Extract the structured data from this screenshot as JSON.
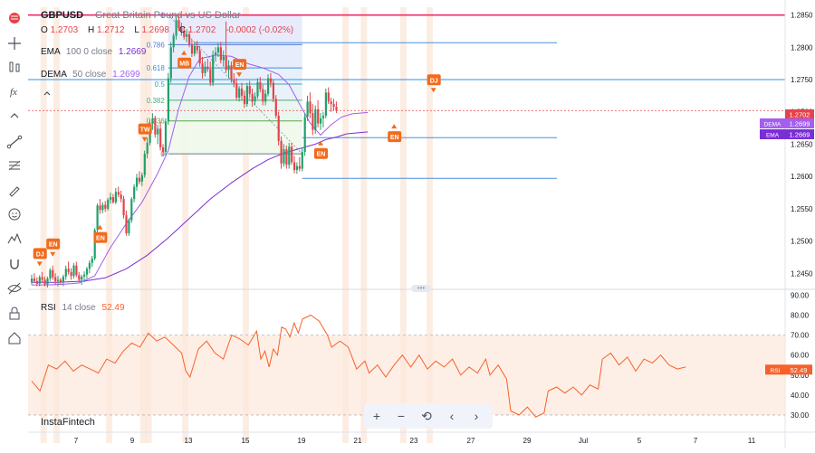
{
  "symbol": "GBPUSD",
  "description": "Great Britain Pound vs US Dollar",
  "ohlc": {
    "o_label": "O",
    "o": "1.2703",
    "h_label": "H",
    "h": "1.2712",
    "l_label": "L",
    "l": "1.2698",
    "c_label": "C",
    "c": "1.2702",
    "change": "-0.0002 (-0.02%)"
  },
  "indicators": {
    "ema": {
      "name": "EMA",
      "params": "100 0 close",
      "value": "1.2669",
      "color": "#7a2fd6"
    },
    "dema": {
      "name": "DEMA",
      "params": "50 close",
      "value": "1.2699",
      "color": "#a45ef0"
    },
    "rsi": {
      "name": "RSI",
      "params": "14 close",
      "value": "52.49",
      "color": "#f7612a"
    }
  },
  "brand": "InstaFintech",
  "colors": {
    "up": "#22a06b",
    "down": "#e5434a",
    "accent": "#f26b1d",
    "red_line": "#e91e63",
    "blue_line": "#2196f3"
  },
  "toolbar_icons": [
    "flag-icon",
    "crosshair-icon",
    "candles-icon",
    "function-icon",
    "caret-up-icon",
    "trendline-icon",
    "fib-icon",
    "brush-icon",
    "emoji-icon",
    "patterns-icon",
    "magnet-icon",
    "hide-icon",
    "lock-icon",
    "home-icon"
  ],
  "nav_buttons": {
    "zoom_in": "+",
    "zoom_out": "−",
    "reset": "⟲",
    "left": "‹",
    "right": "›"
  },
  "chart_data": {
    "type": "candlestick",
    "y_ticks": [
      "1.2850",
      "1.2800",
      "1.2750",
      "1.2700",
      "1.2650",
      "1.2600",
      "1.2550",
      "1.2500",
      "1.2450"
    ],
    "ylim": [
      1.2428,
      1.2862
    ],
    "x_ticks": [
      "7",
      "9",
      "13",
      "15",
      "19",
      "21",
      "23",
      "27",
      "29",
      "Jul",
      "5",
      "7",
      "11"
    ],
    "candles": [
      [
        1.2436,
        1.2448,
        1.2432,
        1.2442
      ],
      [
        1.2442,
        1.245,
        1.2436,
        1.2438
      ],
      [
        1.2438,
        1.2444,
        1.243,
        1.2434
      ],
      [
        1.2434,
        1.2447,
        1.243,
        1.2444
      ],
      [
        1.2444,
        1.2452,
        1.2436,
        1.244
      ],
      [
        1.244,
        1.2445,
        1.243,
        1.2433
      ],
      [
        1.2433,
        1.2445,
        1.2428,
        1.2442
      ],
      [
        1.2442,
        1.2458,
        1.2438,
        1.2455
      ],
      [
        1.2455,
        1.2462,
        1.244,
        1.2444
      ],
      [
        1.2444,
        1.245,
        1.2432,
        1.2438
      ],
      [
        1.2438,
        1.2446,
        1.243,
        1.244
      ],
      [
        1.244,
        1.2443,
        1.2432,
        1.2436
      ],
      [
        1.2436,
        1.2448,
        1.243,
        1.2445
      ],
      [
        1.2445,
        1.2462,
        1.244,
        1.2457
      ],
      [
        1.2457,
        1.2468,
        1.2448,
        1.2452
      ],
      [
        1.2452,
        1.2458,
        1.244,
        1.2446
      ],
      [
        1.2446,
        1.2466,
        1.2442,
        1.2462
      ],
      [
        1.2462,
        1.2468,
        1.2444,
        1.2447
      ],
      [
        1.2447,
        1.2452,
        1.2436,
        1.244
      ],
      [
        1.244,
        1.2448,
        1.2432,
        1.2445
      ],
      [
        1.2445,
        1.2453,
        1.2436,
        1.2448
      ],
      [
        1.2448,
        1.246,
        1.2442,
        1.2457
      ],
      [
        1.2457,
        1.247,
        1.245,
        1.2466
      ],
      [
        1.2466,
        1.2477,
        1.246,
        1.2473
      ],
      [
        1.2473,
        1.252,
        1.247,
        1.2517
      ],
      [
        1.2517,
        1.2558,
        1.2512,
        1.2555
      ],
      [
        1.2555,
        1.2565,
        1.2542,
        1.2548
      ],
      [
        1.2548,
        1.256,
        1.2543,
        1.2556
      ],
      [
        1.2556,
        1.2562,
        1.2545,
        1.255
      ],
      [
        1.255,
        1.2567,
        1.2547,
        1.2564
      ],
      [
        1.2564,
        1.2575,
        1.2558,
        1.2568
      ],
      [
        1.2568,
        1.2573,
        1.2558,
        1.256
      ],
      [
        1.256,
        1.2582,
        1.2557,
        1.2576
      ],
      [
        1.2576,
        1.2584,
        1.2568,
        1.2572
      ],
      [
        1.2572,
        1.2578,
        1.256,
        1.2565
      ],
      [
        1.2565,
        1.257,
        1.2535,
        1.254
      ],
      [
        1.254,
        1.2547,
        1.2508,
        1.2512
      ],
      [
        1.2512,
        1.2535,
        1.2508,
        1.2532
      ],
      [
        1.2532,
        1.2568,
        1.2528,
        1.2565
      ],
      [
        1.2565,
        1.2588,
        1.256,
        1.2584
      ],
      [
        1.2584,
        1.2604,
        1.2578,
        1.2598
      ],
      [
        1.2598,
        1.2608,
        1.2588,
        1.2592
      ],
      [
        1.2592,
        1.2606,
        1.2585,
        1.2602
      ],
      [
        1.2602,
        1.264,
        1.2598,
        1.2635
      ],
      [
        1.2635,
        1.266,
        1.2628,
        1.2652
      ],
      [
        1.2652,
        1.2688,
        1.2648,
        1.2682
      ],
      [
        1.2682,
        1.2698,
        1.2672,
        1.269
      ],
      [
        1.269,
        1.2694,
        1.266,
        1.2665
      ],
      [
        1.2665,
        1.268,
        1.265,
        1.2674
      ],
      [
        1.2674,
        1.2685,
        1.264,
        1.2645
      ],
      [
        1.2645,
        1.265,
        1.2632,
        1.2638
      ],
      [
        1.2638,
        1.269,
        1.2632,
        1.2685
      ],
      [
        1.2685,
        1.276,
        1.268,
        1.2752
      ],
      [
        1.2752,
        1.2808,
        1.2745,
        1.28
      ],
      [
        1.28,
        1.2822,
        1.2792,
        1.2818
      ],
      [
        1.2818,
        1.285,
        1.2812,
        1.2842
      ],
      [
        1.2842,
        1.2848,
        1.2825,
        1.283
      ],
      [
        1.283,
        1.2838,
        1.2818,
        1.2825
      ],
      [
        1.2825,
        1.2832,
        1.2812,
        1.2816
      ],
      [
        1.2816,
        1.2828,
        1.2808,
        1.282
      ],
      [
        1.282,
        1.2825,
        1.28,
        1.2804
      ],
      [
        1.2804,
        1.2812,
        1.2785,
        1.279
      ],
      [
        1.279,
        1.2808,
        1.2786,
        1.2802
      ],
      [
        1.2802,
        1.281,
        1.279,
        1.2795
      ],
      [
        1.2795,
        1.2802,
        1.277,
        1.2775
      ],
      [
        1.2775,
        1.2785,
        1.2752,
        1.276
      ],
      [
        1.276,
        1.2778,
        1.2755,
        1.277
      ],
      [
        1.277,
        1.2782,
        1.2762,
        1.2766
      ],
      [
        1.2766,
        1.2778,
        1.274,
        1.2745
      ],
      [
        1.2745,
        1.2795,
        1.274,
        1.2788
      ],
      [
        1.2788,
        1.28,
        1.2778,
        1.2792
      ],
      [
        1.2792,
        1.2806,
        1.2785,
        1.28
      ],
      [
        1.28,
        1.2808,
        1.2775,
        1.278
      ],
      [
        1.278,
        1.2795,
        1.277,
        1.2786
      ],
      [
        1.2786,
        1.284,
        1.276,
        1.2765
      ],
      [
        1.2765,
        1.278,
        1.2752,
        1.2772
      ],
      [
        1.2772,
        1.2778,
        1.2745,
        1.275
      ],
      [
        1.275,
        1.276,
        1.2738,
        1.2744
      ],
      [
        1.2744,
        1.2752,
        1.2718,
        1.2722
      ],
      [
        1.2722,
        1.274,
        1.2716,
        1.2736
      ],
      [
        1.2736,
        1.2745,
        1.2718,
        1.2725
      ],
      [
        1.2725,
        1.2733,
        1.2706,
        1.2712
      ],
      [
        1.2712,
        1.2745,
        1.2708,
        1.274
      ],
      [
        1.274,
        1.2748,
        1.2722,
        1.2728
      ],
      [
        1.2728,
        1.2736,
        1.2708,
        1.2716
      ],
      [
        1.2716,
        1.273,
        1.271,
        1.2724
      ],
      [
        1.2724,
        1.2752,
        1.272,
        1.2746
      ],
      [
        1.2746,
        1.2754,
        1.273,
        1.2735
      ],
      [
        1.2735,
        1.2742,
        1.271,
        1.2716
      ],
      [
        1.2716,
        1.2734,
        1.271,
        1.2728
      ],
      [
        1.2728,
        1.2758,
        1.2724,
        1.2752
      ],
      [
        1.2752,
        1.276,
        1.2738,
        1.2745
      ],
      [
        1.2745,
        1.275,
        1.2715,
        1.272
      ],
      [
        1.272,
        1.2726,
        1.269,
        1.2694
      ],
      [
        1.2694,
        1.27,
        1.2648,
        1.2655
      ],
      [
        1.2655,
        1.2662,
        1.2612,
        1.262
      ],
      [
        1.262,
        1.265,
        1.2615,
        1.2642
      ],
      [
        1.2642,
        1.2648,
        1.2612,
        1.2618
      ],
      [
        1.2618,
        1.2652,
        1.2612,
        1.2646
      ],
      [
        1.2646,
        1.2652,
        1.2618,
        1.2622
      ],
      [
        1.2622,
        1.2632,
        1.2605,
        1.261
      ],
      [
        1.261,
        1.2622,
        1.2604,
        1.2616
      ],
      [
        1.2616,
        1.263,
        1.2608,
        1.2612
      ],
      [
        1.2612,
        1.2645,
        1.2608,
        1.2638
      ],
      [
        1.2638,
        1.2698,
        1.2632,
        1.2692
      ],
      [
        1.2692,
        1.2725,
        1.2686,
        1.2716
      ],
      [
        1.2716,
        1.273,
        1.269,
        1.2698
      ],
      [
        1.2698,
        1.2712,
        1.2664,
        1.2672
      ],
      [
        1.2672,
        1.271,
        1.2666,
        1.2704
      ],
      [
        1.2704,
        1.2718,
        1.2676,
        1.2682
      ],
      [
        1.2682,
        1.2698,
        1.2672,
        1.269
      ],
      [
        1.269,
        1.27,
        1.2676,
        1.2694
      ],
      [
        1.2694,
        1.2736,
        1.269,
        1.273
      ],
      [
        1.273,
        1.2738,
        1.2712,
        1.2716
      ],
      [
        1.2716,
        1.2722,
        1.27,
        1.2712
      ],
      [
        1.2712,
        1.272,
        1.2702,
        1.2708
      ],
      [
        1.2708,
        1.2716,
        1.2698,
        1.2702
      ]
    ],
    "ema_line": [
      [
        0,
        1.2436
      ],
      [
        10,
        1.2436
      ],
      [
        20,
        1.2438
      ],
      [
        28,
        1.2443
      ],
      [
        36,
        1.2457
      ],
      [
        44,
        1.2478
      ],
      [
        52,
        1.2505
      ],
      [
        60,
        1.2535
      ],
      [
        68,
        1.2565
      ],
      [
        76,
        1.259
      ],
      [
        84,
        1.2612
      ],
      [
        90,
        1.2626
      ],
      [
        96,
        1.2636
      ],
      [
        102,
        1.2643
      ],
      [
        108,
        1.265
      ],
      [
        112,
        1.2657
      ],
      [
        116,
        1.2661
      ],
      [
        120,
        1.2666
      ],
      [
        128,
        1.2669
      ]
    ],
    "dema_line": [
      [
        0,
        1.2432
      ],
      [
        6,
        1.2432
      ],
      [
        12,
        1.2433
      ],
      [
        18,
        1.2435
      ],
      [
        24,
        1.2446
      ],
      [
        30,
        1.249
      ],
      [
        36,
        1.2527
      ],
      [
        42,
        1.256
      ],
      [
        48,
        1.2605
      ],
      [
        52,
        1.264
      ],
      [
        56,
        1.2705
      ],
      [
        60,
        1.2755
      ],
      [
        64,
        1.2782
      ],
      [
        70,
        1.2788
      ],
      [
        76,
        1.2786
      ],
      [
        82,
        1.2775
      ],
      [
        88,
        1.2768
      ],
      [
        94,
        1.2758
      ],
      [
        98,
        1.2742
      ],
      [
        102,
        1.2712
      ],
      [
        106,
        1.2683
      ],
      [
        110,
        1.2664
      ],
      [
        114,
        1.268
      ],
      [
        118,
        1.2692
      ],
      [
        122,
        1.2697
      ],
      [
        128,
        1.2699
      ]
    ],
    "fibonacci": {
      "levels": [
        {
          "label": "1",
          "price": 1.285
        },
        {
          "label": "0.786",
          "price": 1.2804
        },
        {
          "label": "0.618",
          "price": 1.2768
        },
        {
          "label": "0.5",
          "price": 1.2743
        },
        {
          "label": "0.382",
          "price": 1.2718
        },
        {
          "label": "0.236",
          "price": 1.2686
        },
        {
          "label": "0",
          "price": 1.2635
        }
      ],
      "start_index": 52,
      "end_index": 103
    },
    "resistance_line": 1.285,
    "support_lines": [
      1.275
    ],
    "secondary_levels": [
      {
        "price": 1.2807,
        "from_index": 62,
        "to_index": 200
      },
      {
        "price": 1.266,
        "from_index": 103,
        "to_index": 200
      },
      {
        "price": 1.2597,
        "from_index": 103,
        "to_index": 200
      }
    ],
    "current_price_line": 1.2702,
    "price_labels": [
      {
        "text": "1.2702",
        "price": 1.2702,
        "color": "#e5434a"
      },
      {
        "text": "1.2699",
        "prefix": "DEMA",
        "price": 1.2699,
        "color": "#a45ef0"
      },
      {
        "text": "1.2669",
        "prefix": "EMA",
        "price": 1.2669,
        "color": "#7a2fd6"
      }
    ],
    "events": [
      {
        "label": "DJ",
        "index": 3,
        "dir": "down"
      },
      {
        "label": "EN",
        "index": 8,
        "dir": "down"
      },
      {
        "label": "EN",
        "index": 26,
        "dir": "up"
      },
      {
        "label": "TW",
        "index": 43,
        "dir": "down"
      },
      {
        "label": "MB",
        "index": 58,
        "dir": "up"
      },
      {
        "label": "EN",
        "index": 79,
        "dir": "down"
      },
      {
        "label": "EN",
        "index": 110,
        "dir": "up"
      },
      {
        "label": "EN",
        "index": 138,
        "dir": "up"
      },
      {
        "label": "DJ",
        "index": 153,
        "dir": "down"
      }
    ],
    "rsi": {
      "type": "line",
      "y_ticks": [
        "90.00",
        "80.00",
        "70.00",
        "60.00",
        "50.00",
        "40.00",
        "30.00"
      ],
      "ylim": [
        25,
        92
      ],
      "overbought": 70,
      "oversold": 30,
      "values": [
        [
          0,
          47
        ],
        [
          4,
          42
        ],
        [
          8,
          55
        ],
        [
          12,
          53
        ],
        [
          16,
          57
        ],
        [
          20,
          52
        ],
        [
          24,
          55
        ],
        [
          28,
          53
        ],
        [
          32,
          51
        ],
        [
          36,
          58
        ],
        [
          40,
          56
        ],
        [
          44,
          62
        ],
        [
          48,
          66
        ],
        [
          52,
          64
        ],
        [
          56,
          71
        ],
        [
          60,
          67
        ],
        [
          64,
          69
        ],
        [
          68,
          65
        ],
        [
          72,
          61
        ],
        [
          74,
          52
        ],
        [
          76,
          49
        ],
        [
          78,
          56
        ],
        [
          80,
          63
        ],
        [
          84,
          67
        ],
        [
          88,
          61
        ],
        [
          92,
          58
        ],
        [
          96,
          70
        ],
        [
          100,
          68
        ],
        [
          104,
          65
        ],
        [
          108,
          72
        ],
        [
          110,
          58
        ],
        [
          112,
          62
        ],
        [
          114,
          54
        ],
        [
          116,
          63
        ],
        [
          118,
          60
        ],
        [
          120,
          74
        ],
        [
          122,
          73
        ],
        [
          124,
          69
        ],
        [
          126,
          76
        ],
        [
          128,
          71
        ],
        [
          130,
          78
        ],
        [
          134,
          80
        ],
        [
          138,
          77
        ],
        [
          142,
          70
        ],
        [
          144,
          64
        ],
        [
          148,
          67
        ],
        [
          152,
          64
        ],
        [
          156,
          53
        ],
        [
          160,
          57
        ],
        [
          162,
          51
        ],
        [
          166,
          55
        ],
        [
          170,
          49
        ],
        [
          174,
          55
        ],
        [
          178,
          60
        ],
        [
          182,
          54
        ],
        [
          186,
          60
        ],
        [
          190,
          53
        ],
        [
          194,
          57
        ],
        [
          198,
          54
        ],
        [
          202,
          58
        ],
        [
          206,
          50
        ],
        [
          210,
          54
        ],
        [
          214,
          51
        ],
        [
          218,
          58
        ],
        [
          220,
          50
        ],
        [
          224,
          55
        ],
        [
          228,
          48
        ],
        [
          230,
          32
        ],
        [
          234,
          30
        ],
        [
          238,
          34
        ],
        [
          242,
          29
        ],
        [
          246,
          31
        ],
        [
          248,
          42
        ],
        [
          252,
          44
        ],
        [
          256,
          41
        ],
        [
          260,
          44
        ],
        [
          264,
          40
        ],
        [
          268,
          45
        ],
        [
          272,
          43
        ],
        [
          274,
          58
        ],
        [
          278,
          61
        ],
        [
          282,
          55
        ],
        [
          286,
          59
        ],
        [
          290,
          52
        ],
        [
          294,
          58
        ],
        [
          298,
          56
        ],
        [
          302,
          60
        ],
        [
          306,
          55
        ],
        [
          310,
          53
        ],
        [
          314,
          54
        ]
      ]
    },
    "vbands_indices": [
      4,
      9,
      29,
      42,
      44,
      58,
      81,
      119,
      126,
      141,
      151
    ]
  }
}
